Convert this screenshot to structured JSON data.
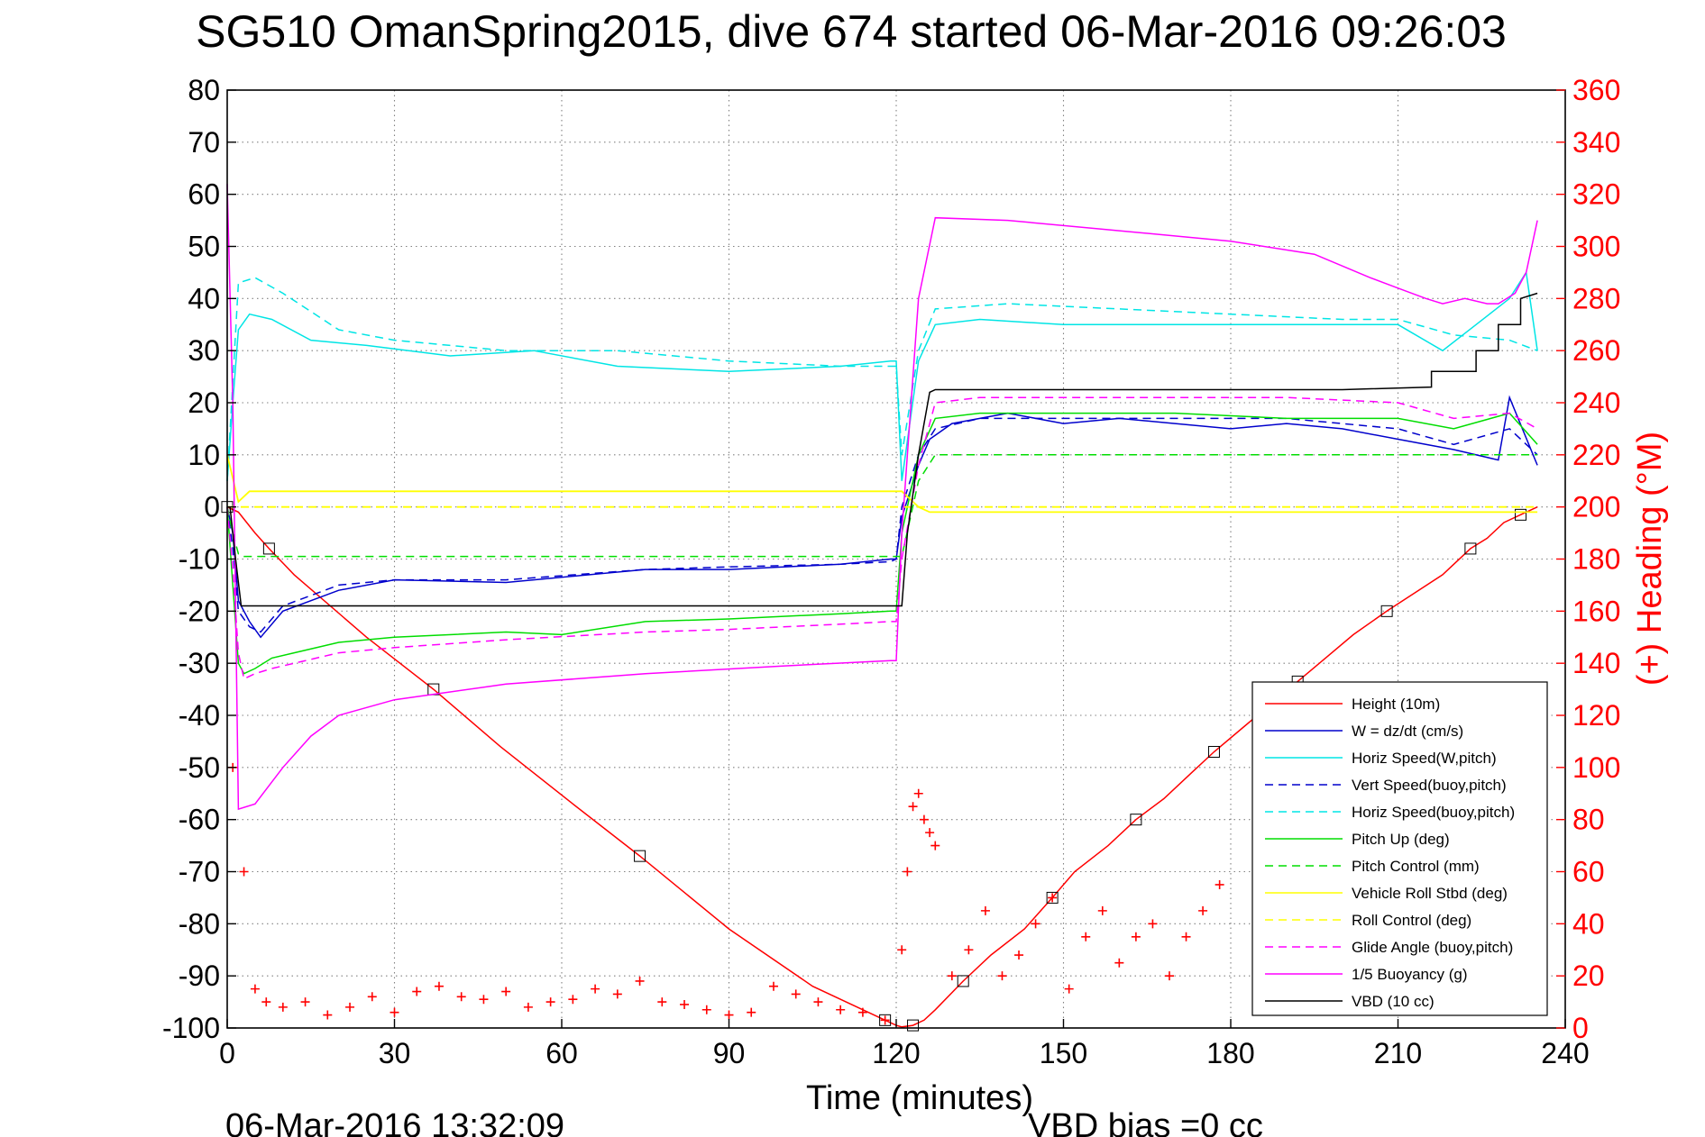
{
  "title": "SG510 OmanSpring2015, dive 674 started 06-Mar-2016 09:26:03",
  "footer": {
    "timestamp": "06-Mar-2016 13:32:09",
    "vbd_bias": "VBD bias =0 cc"
  },
  "colors": {
    "height": "#ff0000",
    "w": "#0000cc",
    "cyan": "#00e5e5",
    "green": "#00dd00",
    "yellow": "#ffff00",
    "magenta": "#ff00ff",
    "vbd": "#000000",
    "heading": "#ff0000"
  },
  "chart_data": {
    "type": "line",
    "xlabel": "Time (minutes)",
    "ylabel_right": "(+) Heading (°M)",
    "xlim": [
      0,
      240
    ],
    "ylim_left": [
      -100,
      80
    ],
    "ylim_right": [
      0,
      360
    ],
    "xticks": [
      0,
      30,
      60,
      90,
      120,
      150,
      180,
      210,
      240
    ],
    "yticks_left": [
      80,
      70,
      60,
      50,
      40,
      30,
      20,
      10,
      0,
      -10,
      -20,
      -30,
      -40,
      -50,
      -60,
      -70,
      -80,
      -90,
      -100
    ],
    "yticks_right": [
      360,
      340,
      320,
      300,
      280,
      260,
      240,
      220,
      200,
      180,
      160,
      140,
      120,
      100,
      80,
      60,
      40,
      20,
      0
    ],
    "grid": true,
    "legend_position": "bottom-right",
    "series": [
      {
        "name": "Height (10m)",
        "color_key": "height",
        "style": "solid",
        "x": [
          0,
          2,
          5,
          7.5,
          12,
          25,
          37,
          49,
          62,
          74,
          90,
          105,
          118,
          120,
          121,
          123,
          125,
          127,
          132,
          137,
          143,
          148,
          152,
          158,
          163,
          168,
          173,
          177,
          182,
          187,
          192,
          197,
          202,
          208,
          213,
          218,
          223,
          226,
          229,
          232,
          235
        ],
        "y": [
          0,
          -1,
          -5,
          -8,
          -13,
          -25,
          -35,
          -46,
          -57,
          -67,
          -81,
          -92,
          -98.5,
          -99.5,
          -99.8,
          -99.5,
          -98.5,
          -96.5,
          -91,
          -86,
          -81,
          -75,
          -70,
          -65,
          -60,
          -56,
          -51,
          -47,
          -42.5,
          -38,
          -33.5,
          -29,
          -24.5,
          -20,
          -16.5,
          -13,
          -8,
          -6,
          -3,
          -1.5,
          0
        ]
      },
      {
        "name": "W = dz/dt (cm/s)",
        "color_key": "w",
        "style": "solid",
        "x": [
          0,
          1,
          2,
          4,
          6,
          10,
          20,
          30,
          50,
          75,
          90,
          110,
          119,
          120,
          121,
          124,
          126,
          130,
          140,
          150,
          160,
          170,
          180,
          190,
          200,
          210,
          220,
          228,
          230,
          235
        ],
        "y": [
          0,
          -5,
          -18,
          -22,
          -25,
          -20,
          -16,
          -14,
          -14.5,
          -12,
          -12,
          -11,
          -10,
          -10,
          -2,
          8,
          13,
          16,
          18,
          16,
          17,
          16,
          15,
          16,
          15,
          13,
          11,
          9,
          21,
          8
        ]
      },
      {
        "name": "Horiz Speed(W,pitch)",
        "color_key": "cyan",
        "style": "solid",
        "x": [
          0,
          1,
          2,
          4,
          8,
          15,
          25,
          40,
          55,
          70,
          90,
          110,
          119,
          120,
          121,
          124,
          127,
          135,
          150,
          170,
          190,
          210,
          218,
          224,
          230,
          233,
          235
        ],
        "y": [
          5,
          20,
          34,
          37,
          36,
          32,
          31,
          29,
          30,
          27,
          26,
          27,
          28,
          28,
          5,
          28,
          35,
          36,
          35,
          35,
          35,
          35,
          30,
          35,
          40,
          45,
          30
        ]
      },
      {
        "name": "Vert Speed(buoy,pitch)",
        "color_key": "w",
        "style": "dashed",
        "x": [
          0,
          1,
          2,
          4,
          6,
          10,
          20,
          30,
          50,
          75,
          90,
          110,
          119,
          120,
          121,
          124,
          127,
          135,
          150,
          170,
          190,
          210,
          220,
          230,
          235
        ],
        "y": [
          0,
          -8,
          -20,
          -23,
          -24,
          -19,
          -15,
          -14,
          -14,
          -12,
          -11.5,
          -11,
          -10.5,
          -10,
          0,
          10,
          15,
          17,
          17,
          17,
          17,
          15,
          12,
          15,
          10
        ]
      },
      {
        "name": "Horiz Speed(buoy,pitch)",
        "color_key": "cyan",
        "style": "dashed",
        "x": [
          0,
          2,
          5,
          10,
          20,
          30,
          50,
          70,
          90,
          110,
          119,
          120,
          121,
          124,
          127,
          140,
          160,
          180,
          200,
          210,
          220,
          230,
          235
        ],
        "y": [
          5,
          43,
          44,
          41,
          34,
          32,
          30,
          30,
          28,
          27,
          27,
          27,
          10,
          30,
          38,
          39,
          38,
          37,
          36,
          36,
          33,
          32,
          30
        ]
      },
      {
        "name": "Pitch Up (deg)",
        "color_key": "green",
        "style": "solid",
        "x": [
          0,
          1,
          2,
          3,
          5,
          8,
          12,
          20,
          30,
          50,
          60,
          75,
          90,
          110,
          119,
          120,
          121,
          124,
          127,
          135,
          150,
          170,
          190,
          210,
          220,
          230,
          235
        ],
        "y": [
          0,
          -15,
          -30,
          -32,
          -31,
          -29,
          -28,
          -26,
          -25,
          -24,
          -24.5,
          -22,
          -21.5,
          -20.5,
          -20,
          -20,
          -5,
          10,
          17,
          18,
          18,
          18,
          17,
          17,
          15,
          18,
          12
        ]
      },
      {
        "name": "Pitch Control (mm)",
        "color_key": "green",
        "style": "dashed",
        "x": [
          0,
          1,
          2,
          3,
          120,
          121,
          124,
          127,
          235
        ],
        "y": [
          0,
          -5,
          -9,
          -9.5,
          -9.5,
          -9.5,
          5,
          10,
          10
        ]
      },
      {
        "name": "Vehicle Roll Stbd (deg)",
        "color_key": "yellow",
        "style": "solid",
        "x": [
          0,
          2,
          4,
          30,
          60,
          90,
          120,
          121,
          124,
          126,
          130,
          140,
          150,
          160,
          170,
          180,
          190,
          200,
          210,
          220,
          230,
          235
        ],
        "y": [
          10,
          1,
          3,
          3,
          3,
          3,
          3,
          3,
          0,
          -1,
          -1,
          -1,
          -1,
          -1,
          -1,
          -1,
          -1,
          -1,
          -1,
          -1,
          -1,
          -1
        ]
      },
      {
        "name": "Roll Control (deg)",
        "color_key": "yellow",
        "style": "dashed",
        "x": [
          0,
          2,
          4,
          120,
          121,
          124,
          126,
          235
        ],
        "y": [
          0,
          0,
          0,
          0,
          0,
          0,
          0,
          0
        ]
      },
      {
        "name": "Glide Angle (buoy,pitch)",
        "color_key": "magenta",
        "style": "dashed",
        "x": [
          0,
          1,
          2,
          3,
          5,
          8,
          12,
          20,
          30,
          50,
          75,
          90,
          110,
          119,
          120,
          121,
          124,
          127,
          135,
          150,
          170,
          190,
          210,
          220,
          230,
          235
        ],
        "y": [
          0,
          -12,
          -28,
          -33,
          -32,
          -31,
          -30,
          -28,
          -27,
          -25.5,
          -24,
          -23.5,
          -22.5,
          -22,
          -22,
          -10,
          8,
          20,
          21,
          21,
          21,
          21,
          20,
          17,
          18,
          15
        ]
      },
      {
        "name": "1/5 Buoyancy (g)",
        "color_key": "magenta",
        "style": "solid",
        "x": [
          0,
          1,
          2,
          5,
          10,
          15,
          20,
          30,
          50,
          75,
          100,
          119,
          120,
          121,
          124,
          127,
          140,
          160,
          180,
          195,
          205,
          210,
          215,
          218,
          222,
          226,
          228,
          231,
          233,
          235
        ],
        "y": [
          62,
          20,
          -58,
          -57,
          -50,
          -44,
          -40,
          -37,
          -34,
          -32,
          -30.5,
          -29.5,
          -29.5,
          -5,
          40,
          55.5,
          55,
          53,
          51,
          48.5,
          44,
          42,
          40,
          39,
          40,
          39,
          39,
          41,
          45,
          55
        ]
      },
      {
        "name": "VBD (10 cc)",
        "color_key": "vbd",
        "style": "solid",
        "x": [
          0,
          0.5,
          1.5,
          2.5,
          119,
          120,
          121,
          122,
          124,
          126,
          127,
          128,
          135,
          200,
          216,
          216,
          224,
          224,
          228,
          228,
          232,
          232,
          235
        ],
        "y": [
          0,
          0,
          -10,
          -19,
          -19,
          -19,
          -19,
          -5,
          10,
          22,
          22.5,
          22.5,
          22.5,
          22.5,
          23,
          26,
          26,
          30,
          30,
          35,
          35,
          40,
          41
        ]
      },
      {
        "name": "Heading",
        "color_key": "heading",
        "style": "markers",
        "marker": "+",
        "x": [
          1,
          3,
          5,
          7,
          10,
          14,
          18,
          22,
          26,
          30,
          34,
          38,
          42,
          46,
          50,
          54,
          58,
          62,
          66,
          70,
          74,
          78,
          82,
          86,
          90,
          94,
          98,
          102,
          106,
          110,
          114,
          118,
          121,
          122,
          123,
          124,
          125,
          126,
          127,
          130,
          133,
          136,
          139,
          142,
          145,
          148,
          151,
          154,
          157,
          160,
          163,
          166,
          169,
          172,
          175,
          178
        ],
        "y": [
          100,
          60,
          15,
          10,
          8,
          10,
          5,
          8,
          12,
          6,
          14,
          16,
          12,
          11,
          14,
          8,
          10,
          11,
          15,
          13,
          18,
          10,
          9,
          7,
          5,
          6,
          16,
          13,
          10,
          7,
          6,
          3,
          30,
          60,
          85,
          90,
          80,
          75,
          70,
          20,
          30,
          45,
          20,
          28,
          40,
          50,
          15,
          35,
          45,
          25,
          35,
          40,
          20,
          35,
          45,
          55
        ]
      }
    ]
  }
}
